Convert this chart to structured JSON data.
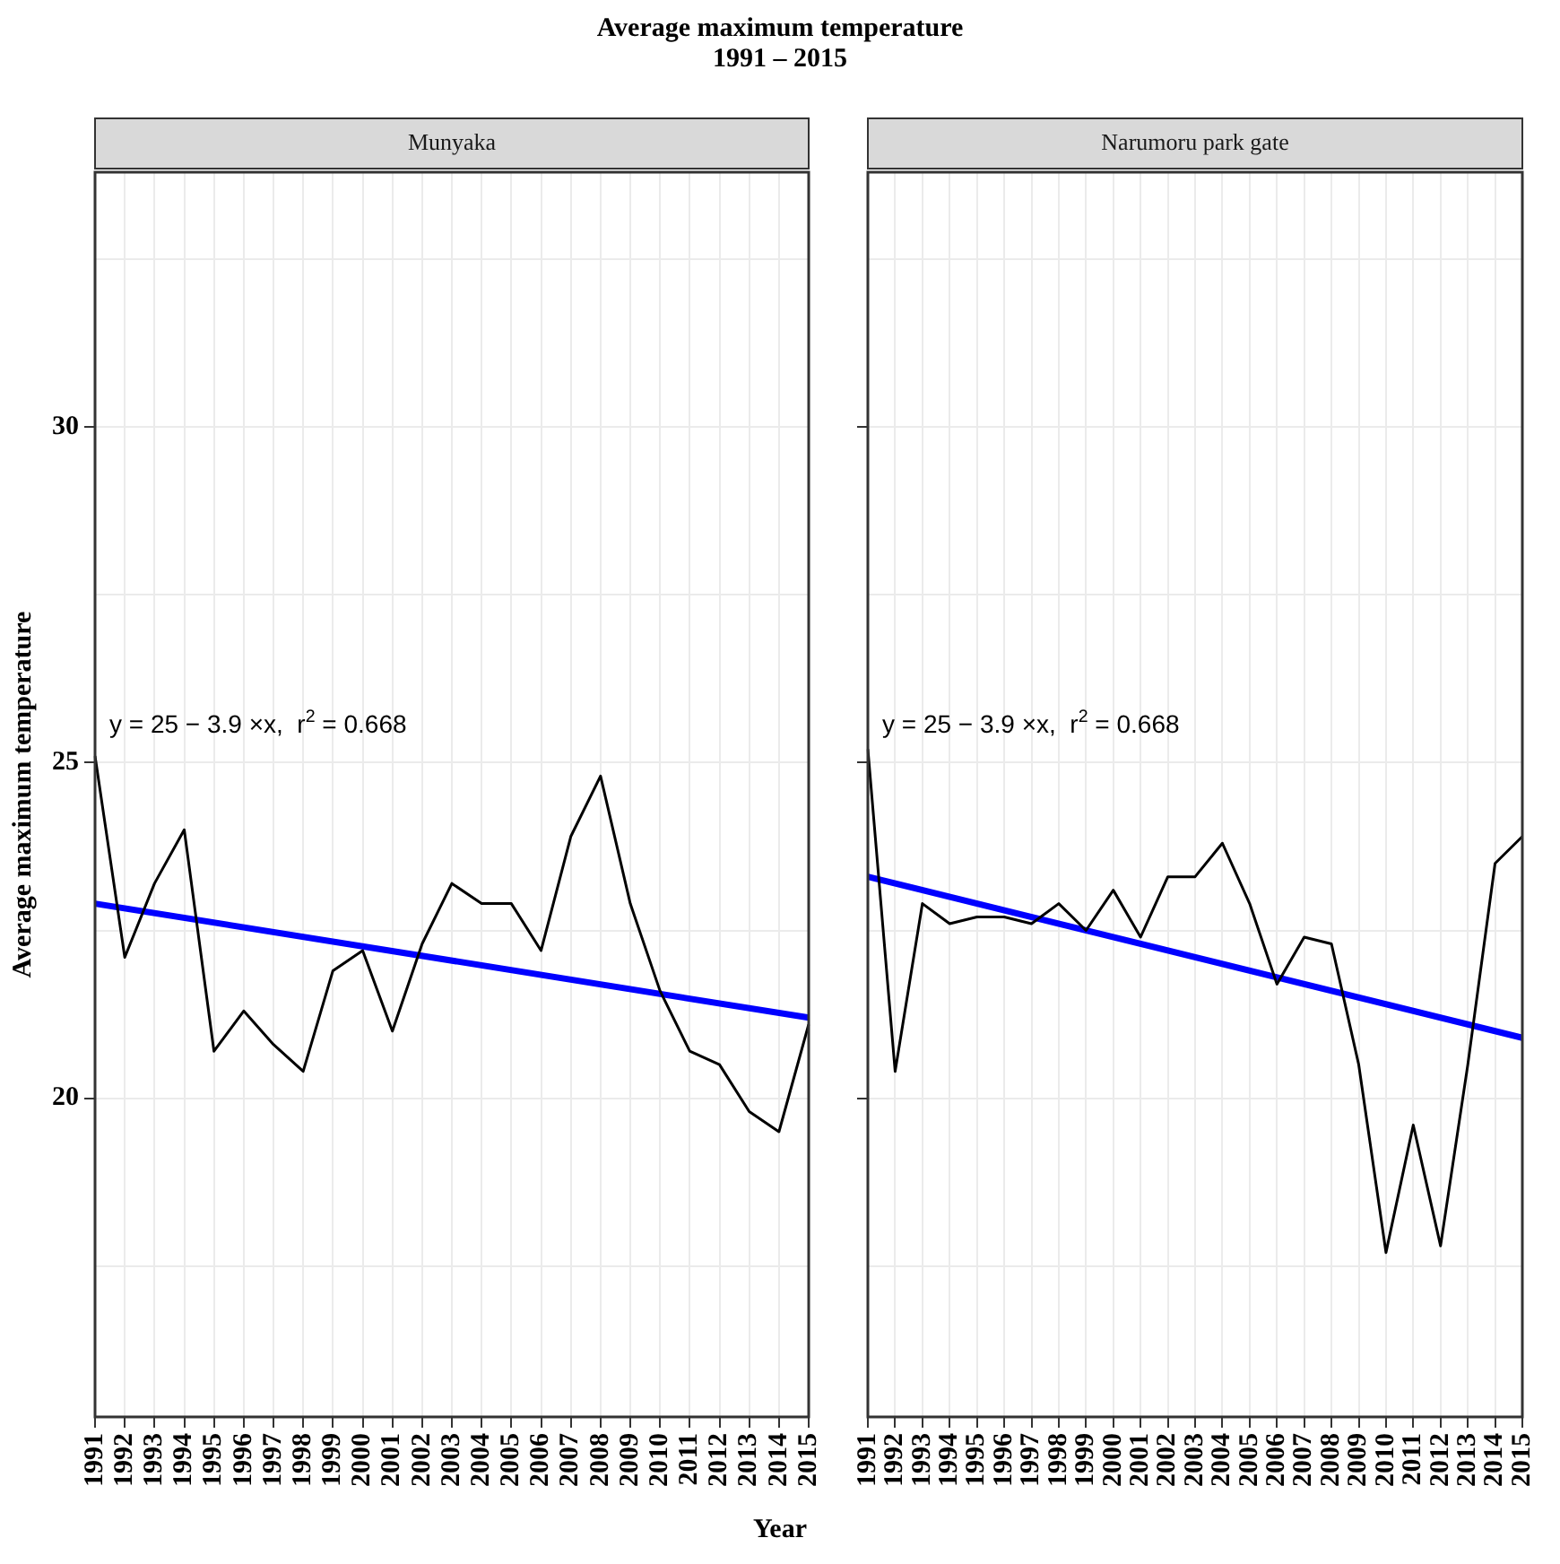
{
  "chart_data": [
    {
      "type": "line",
      "title": "Average maximum temperature\n1991 – 2015",
      "subtitle": "Munyaka",
      "xlabel": "Year",
      "ylabel": "Average maximum temperature",
      "categories": [
        "1991",
        "1992",
        "1993",
        "1994",
        "1995",
        "1996",
        "1997",
        "1998",
        "1999",
        "2000",
        "2001",
        "2002",
        "2003",
        "2004",
        "2005",
        "2006",
        "2007",
        "2008",
        "2009",
        "2010",
        "2011",
        "2012",
        "2013",
        "2014",
        "2015"
      ],
      "series": [
        {
          "color": "#000000",
          "values": [
            25.1,
            22.1,
            23.2,
            24.0,
            20.7,
            21.3,
            20.8,
            20.4,
            21.9,
            22.2,
            21.0,
            22.3,
            23.2,
            22.9,
            22.9,
            22.2,
            23.9,
            24.8,
            22.9,
            21.6,
            20.7,
            20.5,
            19.8,
            19.5,
            21.1
          ]
        },
        {
          "color": "#0000ff",
          "values": [
            22.9,
            null,
            null,
            null,
            null,
            null,
            null,
            null,
            null,
            null,
            null,
            null,
            null,
            null,
            null,
            null,
            null,
            null,
            null,
            null,
            null,
            null,
            null,
            null,
            21.2
          ]
        }
      ],
      "annotations": [
        "y = 25 − 3.9 ×x,  r$^{2}$ = 0.668"
      ],
      "ylim": [
        15.25,
        33.8
      ],
      "yticks": [
        {
          "value": 17.5,
          "label": null
        },
        20,
        {
          "value": 22.5,
          "label": null
        },
        25,
        {
          "value": 27.5,
          "label": null
        },
        30,
        {
          "value": 32.5,
          "label": null
        }
      ],
      "grid": true,
      "legend": false,
      "marker": "none",
      "line_style": "solid"
    },
    {
      "type": "line",
      "subtitle": "Narumoru park gate",
      "categories": [
        "1991",
        "1992",
        "1993",
        "1994",
        "1995",
        "1996",
        "1997",
        "1998",
        "1999",
        "2000",
        "2001",
        "2002",
        "2003",
        "2004",
        "2005",
        "2006",
        "2007",
        "2008",
        "2009",
        "2010",
        "2011",
        "2012",
        "2013",
        "2014",
        "2015"
      ],
      "series": [
        {
          "color": "#000000",
          "values": [
            25.2,
            20.4,
            22.9,
            22.6,
            22.7,
            22.7,
            22.6,
            22.9,
            22.5,
            23.1,
            22.4,
            23.3,
            23.3,
            23.8,
            22.9,
            21.7,
            22.4,
            22.3,
            20.5,
            17.7,
            19.6,
            17.8,
            20.5,
            23.5,
            23.9
          ]
        },
        {
          "color": "#0000ff",
          "values": [
            23.3,
            null,
            null,
            null,
            null,
            null,
            null,
            null,
            null,
            null,
            null,
            null,
            null,
            null,
            null,
            null,
            null,
            null,
            null,
            null,
            null,
            null,
            null,
            null,
            20.9
          ]
        }
      ],
      "annotations": [
        "y = 25 − 3.9 ×x,  r$^{2}$ = 0.668"
      ],
      "ylim": [
        15.25,
        33.8
      ],
      "yticks": [
        {
          "value": 17.5,
          "label": null
        },
        20,
        {
          "value": 22.5,
          "label": null
        },
        25,
        {
          "value": 27.5,
          "label": null
        },
        30,
        {
          "value": 32.5,
          "label": null
        }
      ],
      "grid": true,
      "legend": false,
      "marker": "none",
      "line_style": "solid",
      "tick_labels": "x"
    }
  ]
}
